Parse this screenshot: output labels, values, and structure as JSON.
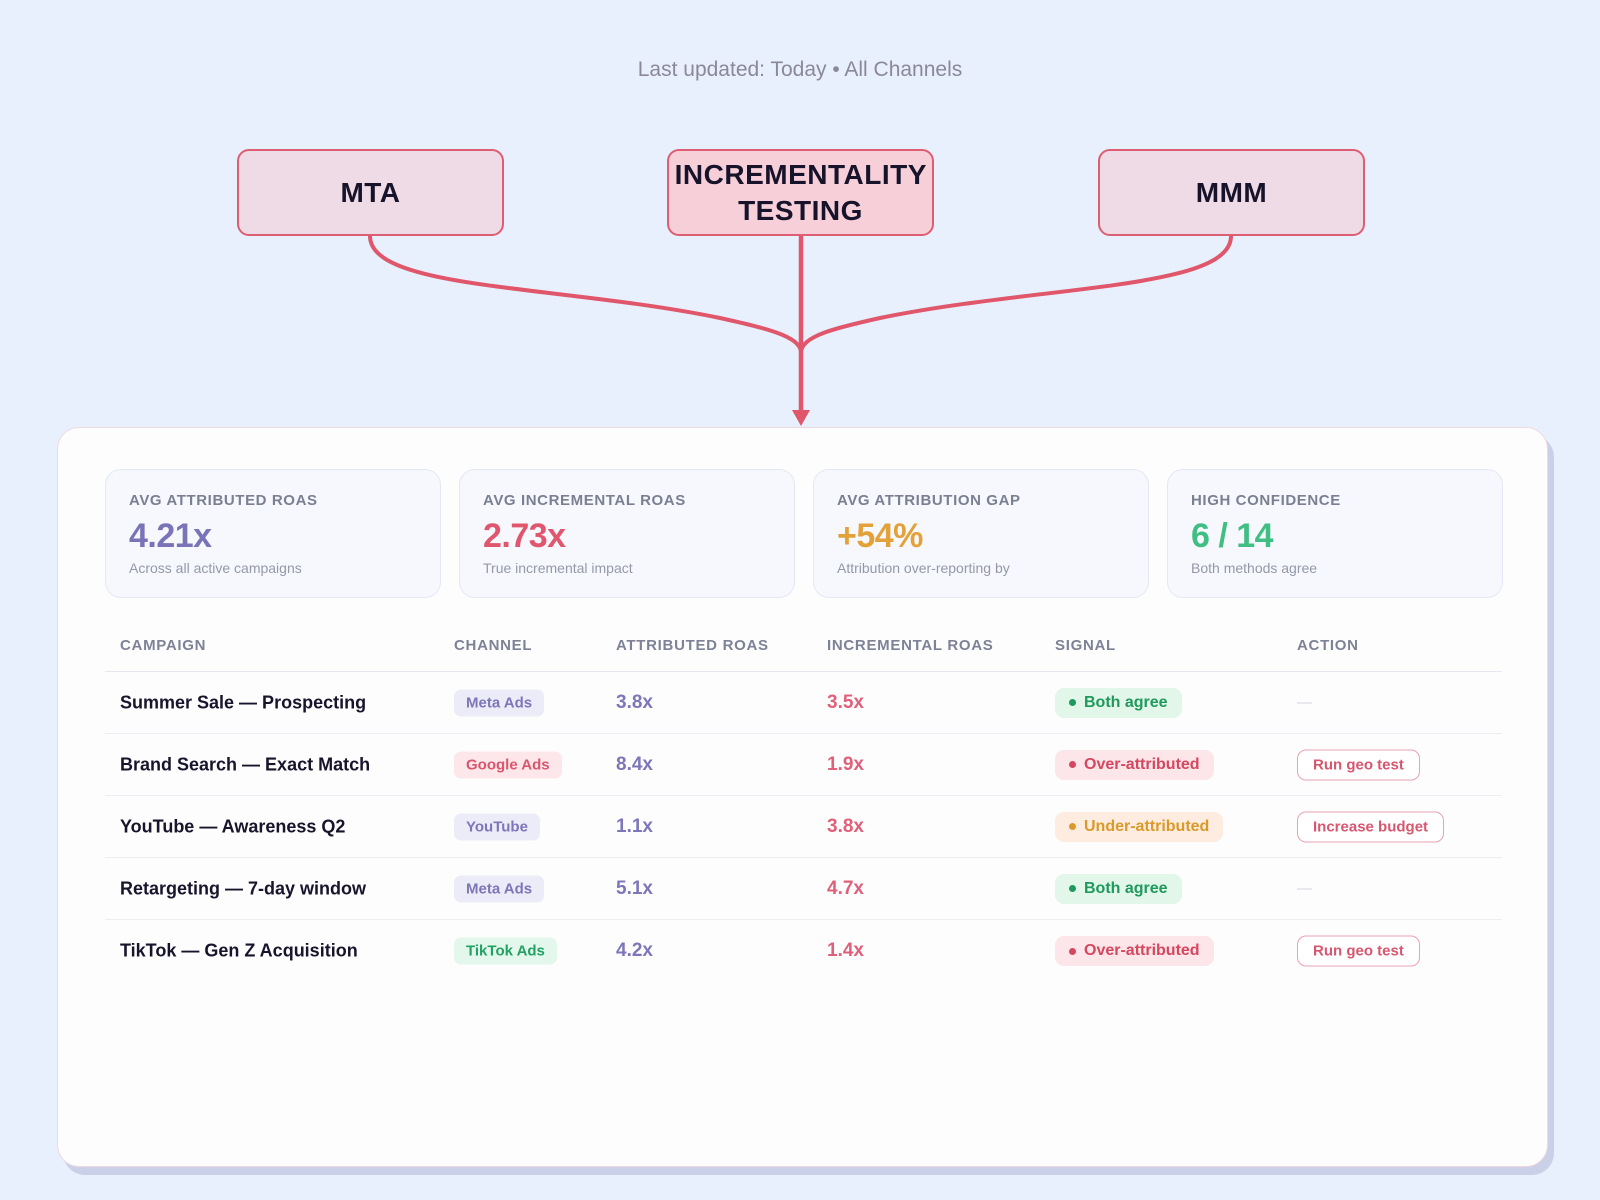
{
  "header": {
    "updated": "Last updated: Today • All Channels"
  },
  "flow": {
    "sources": [
      {
        "label": "MTA"
      },
      {
        "label": "INCREMENTALITY TESTING"
      },
      {
        "label": "MMM"
      }
    ],
    "line_color": "#e0566b"
  },
  "kpis": [
    {
      "label": "AVG ATTRIBUTED ROAS",
      "value": "4.21x",
      "sub": "Across all active campaigns",
      "color": "#7a73b8"
    },
    {
      "label": "AVG INCREMENTAL ROAS",
      "value": "2.73x",
      "sub": "True incremental impact",
      "color": "#df566e"
    },
    {
      "label": "AVG ATTRIBUTION GAP",
      "value": "+54%",
      "sub": "Attribution over-reporting by",
      "color": "#e3a13a"
    },
    {
      "label": "HIGH CONFIDENCE",
      "value": "6 / 14",
      "sub": "Both methods agree",
      "color": "#3fbf83"
    }
  ],
  "table": {
    "columns": [
      "CAMPAIGN",
      "CHANNEL",
      "ATTRIBUTED ROAS",
      "INCREMENTAL ROAS",
      "SIGNAL",
      "ACTION"
    ],
    "rows": [
      {
        "campaign": "Summer Sale — Prospecting",
        "channel": "Meta Ads",
        "channel_style": "purple",
        "attributed": "3.8x",
        "incremental": "3.5x",
        "signal": "Both agree",
        "signal_style": "green",
        "action": "—"
      },
      {
        "campaign": "Brand Search — Exact Match",
        "channel": "Google Ads",
        "channel_style": "red",
        "attributed": "8.4x",
        "incremental": "1.9x",
        "signal": "Over-attributed",
        "signal_style": "red",
        "action": "Run geo test"
      },
      {
        "campaign": "YouTube — Awareness Q2",
        "channel": "YouTube",
        "channel_style": "purple",
        "attributed": "1.1x",
        "incremental": "3.8x",
        "signal": "Under-attributed",
        "signal_style": "orange",
        "action": "Increase budget"
      },
      {
        "campaign": "Retargeting — 7-day window",
        "channel": "Meta Ads",
        "channel_style": "purple",
        "attributed": "5.1x",
        "incremental": "4.7x",
        "signal": "Both agree",
        "signal_style": "green",
        "action": "—"
      },
      {
        "campaign": "TikTok — Gen Z Acquisition",
        "channel": "TikTok Ads",
        "channel_style": "green",
        "attributed": "4.2x",
        "incremental": "1.4x",
        "signal": "Over-attributed",
        "signal_style": "red",
        "action": "Run geo test"
      }
    ]
  },
  "styles": {
    "channel": {
      "purple": {
        "bg": "#ecebf8",
        "fg": "#7d76b8"
      },
      "red": {
        "bg": "#fde7ea",
        "fg": "#d9566f"
      },
      "green": {
        "bg": "#e3f7ec",
        "fg": "#23a163"
      }
    },
    "signal": {
      "green": {
        "bg": "#e2f6ea",
        "fg": "#1f9a5c",
        "dot": "#1f9a5c"
      },
      "red": {
        "bg": "#fde6ea",
        "fg": "#d4475f",
        "dot": "#d4475f"
      },
      "orange": {
        "bg": "#fdecdf",
        "fg": "#d99a2b",
        "dot": "#d99a2b"
      }
    }
  }
}
